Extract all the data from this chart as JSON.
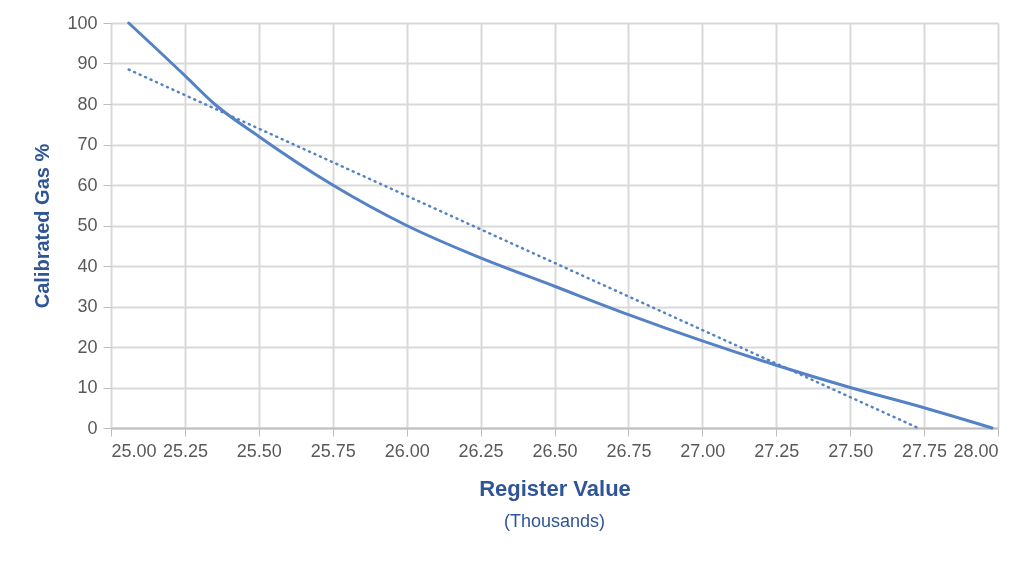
{
  "chart_data": {
    "type": "line",
    "xlabel": "Register Value",
    "ylabel": "Calibrated Gas %",
    "annotations": [
      "(Thousands)"
    ],
    "xlim": [
      25,
      28
    ],
    "xticks": [
      {
        "value": 25,
        "label": "25.00"
      },
      {
        "value": 25.25,
        "label": "25.25"
      },
      {
        "value": 25.5,
        "label": "25.50"
      },
      {
        "value": 25.75,
        "label": "25.75"
      },
      {
        "value": 26,
        "label": "26.00"
      },
      {
        "value": 26.25,
        "label": "26.25"
      },
      {
        "value": 26.5,
        "label": "26.50"
      },
      {
        "value": 26.75,
        "label": "26.75"
      },
      {
        "value": 27,
        "label": "27.00"
      },
      {
        "value": 27.25,
        "label": "27.25"
      },
      {
        "value": 27.5,
        "label": "27.50"
      },
      {
        "value": 27.75,
        "label": "27.75"
      },
      {
        "value": 28,
        "label": "28.00"
      }
    ],
    "ylim": [
      0,
      100
    ],
    "yticks": [
      0,
      10,
      20,
      30,
      40,
      50,
      60,
      70,
      80,
      90,
      100
    ],
    "grid": true,
    "series": [
      {
        "color": "#5482c4",
        "line_style": "solid",
        "x": [
          25.06,
          25.25,
          25.35,
          25.5,
          25.75,
          26.0,
          26.25,
          26.5,
          26.75,
          27.0,
          27.25,
          27.5,
          27.75,
          27.98
        ],
        "values": [
          100,
          87,
          80,
          72,
          60,
          50,
          42,
          35,
          28,
          21.5,
          15.5,
          10,
          5,
          0
        ]
      },
      {
        "color": "#5482c4",
        "line_style": "dotted",
        "x": [
          25.06,
          27.73
        ],
        "values": [
          88.5,
          0
        ]
      }
    ]
  }
}
